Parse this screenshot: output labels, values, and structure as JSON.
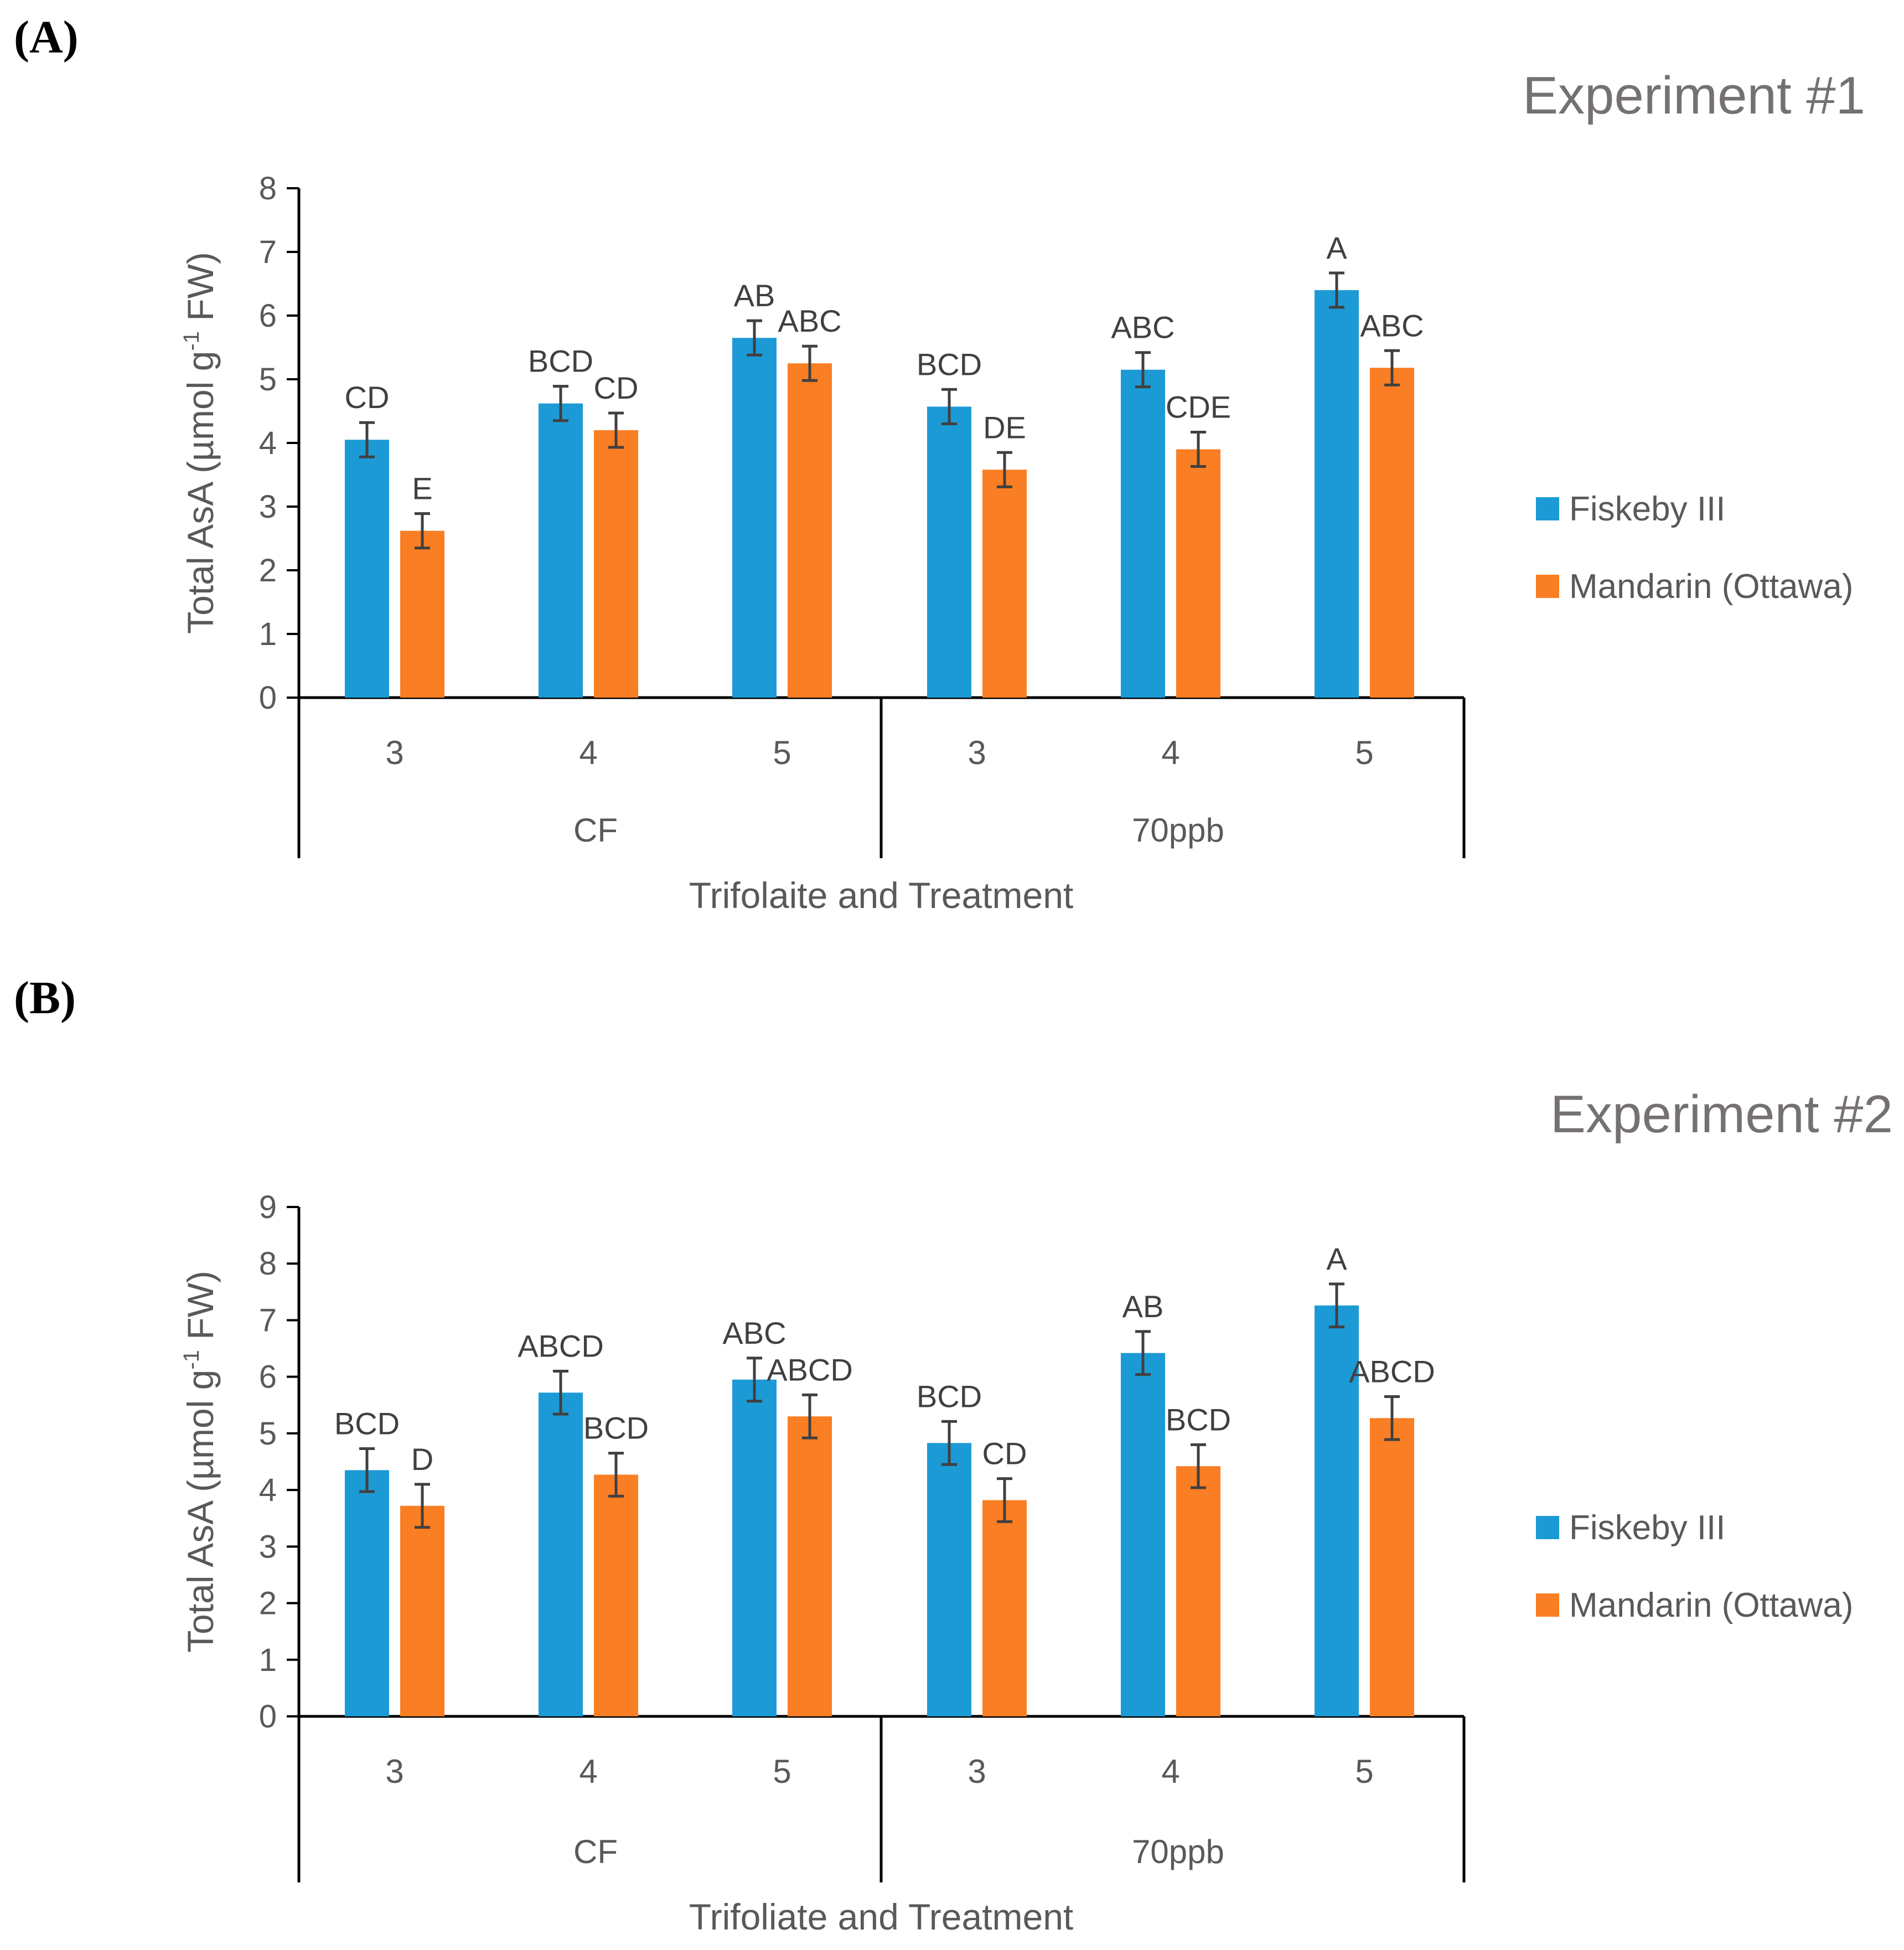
{
  "chart_data": [
    {
      "type": "bar",
      "panel_label": "(A)",
      "title": "Experiment #1",
      "ylabel_main": "Total AsA (µmol g",
      "ylabel_sup": "-1",
      "ylabel_end": " FW)",
      "xlabel": "Trifolaite and Treatment",
      "ylim": [
        0,
        8
      ],
      "yticks": [
        "0",
        "1",
        "2",
        "3",
        "4",
        "5",
        "6",
        "7",
        "8"
      ],
      "groups": [
        "CF",
        "70ppb"
      ],
      "categories": [
        "3",
        "4",
        "5",
        "3",
        "4",
        "5"
      ],
      "legend_position": "right",
      "series": [
        {
          "name": "Fiskeby III",
          "color": "#1c9ad6",
          "values": [
            4.05,
            4.62,
            5.65,
            4.57,
            5.15,
            6.4
          ],
          "errors": [
            0.27,
            0.27,
            0.27,
            0.27,
            0.27,
            0.27
          ],
          "letters": [
            "CD",
            "BCD",
            "AB",
            "BCD",
            "ABC",
            "A"
          ]
        },
        {
          "name": "Mandarin (Ottawa)",
          "color": "#fa7e23",
          "values": [
            2.62,
            4.2,
            5.25,
            3.58,
            3.9,
            5.18
          ],
          "errors": [
            0.27,
            0.27,
            0.27,
            0.27,
            0.27,
            0.27
          ],
          "letters": [
            "E",
            "CD",
            "ABC",
            "DE",
            "CDE",
            "ABC"
          ]
        }
      ]
    },
    {
      "type": "bar",
      "panel_label": "(B)",
      "title": "Experiment #2",
      "ylabel_main": "Total AsA (µmol g",
      "ylabel_sup": "-1",
      "ylabel_end": " FW)",
      "xlabel": "Trifoliate and Treatment",
      "ylim": [
        0,
        9
      ],
      "yticks": [
        "0",
        "1",
        "2",
        "3",
        "4",
        "5",
        "6",
        "7",
        "8",
        "9"
      ],
      "groups": [
        "CF",
        "70ppb"
      ],
      "categories": [
        "3",
        "4",
        "5",
        "3",
        "4",
        "5"
      ],
      "legend_position": "right",
      "series": [
        {
          "name": "Fiskeby III",
          "color": "#1c9ad6",
          "values": [
            4.35,
            5.72,
            5.95,
            4.83,
            6.42,
            7.26
          ],
          "errors": [
            0.38,
            0.38,
            0.38,
            0.38,
            0.38,
            0.38
          ],
          "letters": [
            "BCD",
            "ABCD",
            "ABC",
            "BCD",
            "AB",
            "A"
          ]
        },
        {
          "name": "Mandarin (Ottawa)",
          "color": "#fa7e23",
          "values": [
            3.72,
            4.27,
            5.3,
            3.82,
            4.42,
            5.27
          ],
          "errors": [
            0.38,
            0.38,
            0.38,
            0.38,
            0.38,
            0.38
          ],
          "letters": [
            "D",
            "BCD",
            "ABCD",
            "CD",
            "BCD",
            "ABCD"
          ]
        }
      ]
    }
  ]
}
